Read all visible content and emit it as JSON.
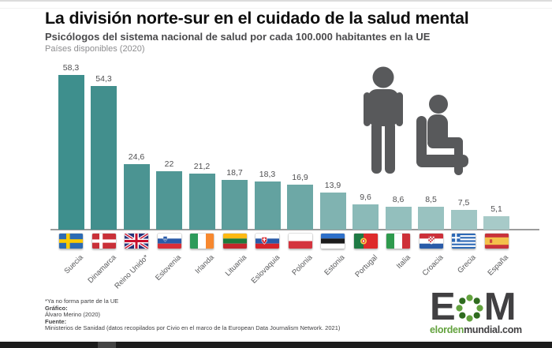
{
  "header": {
    "title": "La división norte-sur en el cuidado de la salud mental",
    "subtitle": "Psicólogos del sistema nacional de salud por cada 100.000 habitantes en la UE",
    "note": "Países disponibles (2020)"
  },
  "chart_data": {
    "type": "bar",
    "title": "Psicólogos del sistema nacional de salud por cada 100.000 habitantes en la UE",
    "subtitle": "Países disponibles (2020)",
    "categories": [
      "Suecia",
      "Dinamarca",
      "Reino Unido*",
      "Eslovenia",
      "Irlanda",
      "Lituania",
      "Eslovaquia",
      "Polonia",
      "Estonia",
      "Portugal",
      "Italia",
      "Croacia",
      "Grecia",
      "España"
    ],
    "values": [
      58.3,
      54.3,
      24.6,
      22,
      21.2,
      18.7,
      18.3,
      16.9,
      13.9,
      9.6,
      8.6,
      8.5,
      7.5,
      5.1
    ],
    "value_labels": [
      "58,3",
      "54,3",
      "24,6",
      "22",
      "21,2",
      "18,7",
      "18,3",
      "16,9",
      "13,9",
      "9,6",
      "8,6",
      "8,5",
      "7,5",
      "5,1"
    ],
    "ids": [
      "suecia",
      "dinamarca",
      "reino-unido",
      "eslovenia",
      "irlanda",
      "lituania",
      "eslovaquia",
      "polonia",
      "estonia",
      "portugal",
      "italia",
      "croacia",
      "grecia",
      "espana"
    ],
    "flag_icons": [
      "flag-sweden",
      "flag-denmark",
      "flag-united-kingdom",
      "flag-slovenia",
      "flag-ireland",
      "flag-lithuania",
      "flag-slovakia",
      "flag-poland",
      "flag-estonia",
      "flag-portugal",
      "flag-italy",
      "flag-croatia",
      "flag-greece",
      "flag-spain"
    ],
    "bar_colors": [
      "#3E8F8D",
      "#428F8D",
      "#4B9492",
      "#509795",
      "#549997",
      "#5D9E9C",
      "#63A2A0",
      "#6DA8A6",
      "#80B3B1",
      "#8BBAB8",
      "#93BFBD",
      "#99C2C0",
      "#A0C6C4",
      "#A7CAC8"
    ],
    "ylim": [
      0,
      60
    ],
    "grid": false,
    "legend": "none",
    "bar_label_position": "above",
    "axis_line_color": "#9B9B9B",
    "label_color": "#4F4F51",
    "country_label_color": "#58595B"
  },
  "illustration": {
    "icon": "therapist-and-seated-patient-icon",
    "color": "#58595B"
  },
  "footer": {
    "asterisk_note": "*Ya no forma parte de la UE",
    "credit_label": "Gráfico:",
    "credit_value": "Álvaro Merino (2020)",
    "source_label": "Fuente:",
    "source_value": "Ministerios de Sanidad (datos recopilados por Civio en el marco de la European Data Journalism Network. 2021)"
  },
  "logo": {
    "letter_e": "E",
    "letter_m": "M",
    "url_green_part": "elorden",
    "url_dark_part": "mundial.com",
    "green": "#63A23E",
    "dark_green": "#2F6B1F",
    "dark": "#414042"
  }
}
